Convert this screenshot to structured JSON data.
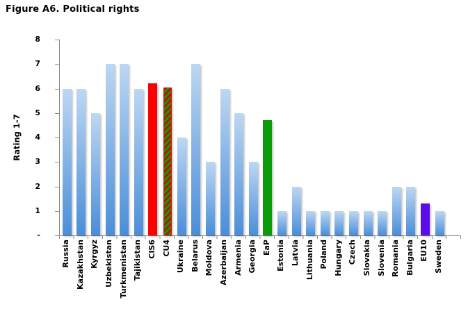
{
  "chart_data": {
    "type": "bar",
    "title": "Figure A6. Political rights",
    "xlabel": "",
    "ylabel": "Rating 1-7",
    "ylim": [
      0,
      8
    ],
    "ytick_labels": [
      "8",
      "7",
      "6",
      "5",
      "4",
      "3",
      "2",
      "1",
      "-"
    ],
    "grid": false,
    "legend": "none",
    "categories": [
      "Russia",
      "Kazakhstan",
      "Kyrgyz",
      "Uzbekistan",
      "Turkmenistan",
      "Tajikistan",
      "CIS6",
      "CU4",
      "Ukraine",
      "Belarus",
      "Moldova",
      "Azerbaijan",
      "Armenia",
      "Georgia",
      "EaP",
      "Estonia",
      "Latvia",
      "Lithuania",
      "Poland",
      "Hungary",
      "Czech",
      "Slovakia",
      "Slovenia",
      "Romania",
      "Bulgaria",
      "EU10",
      "Sweden"
    ],
    "values": [
      6,
      6,
      5,
      7,
      7,
      6,
      6.2,
      6,
      4,
      7,
      3,
      6,
      5,
      3,
      4.7,
      1,
      2,
      1,
      1,
      1,
      1,
      1,
      1,
      2,
      2,
      1.3,
      1
    ],
    "bar_styles": [
      "blue",
      "blue",
      "blue",
      "blue",
      "blue",
      "blue",
      "red",
      "hatch",
      "blue",
      "blue",
      "blue",
      "blue",
      "blue",
      "blue",
      "green",
      "blue",
      "blue",
      "blue",
      "blue",
      "blue",
      "blue",
      "blue",
      "blue",
      "blue",
      "blue",
      "purple",
      "blue"
    ],
    "colors": {
      "bar_blue_top": "#bdd7f3",
      "bar_blue_bottom": "#4a8ed8",
      "cis6_red": "#ff0000",
      "eap_green": "#0a9a0a",
      "eu10_purple": "#5c0ce8",
      "hatch_stripe_red": "#dd0000",
      "hatch_stripe_green": "#0a9a0a",
      "axis_gray": "#898989",
      "text_black": "#000000"
    }
  }
}
